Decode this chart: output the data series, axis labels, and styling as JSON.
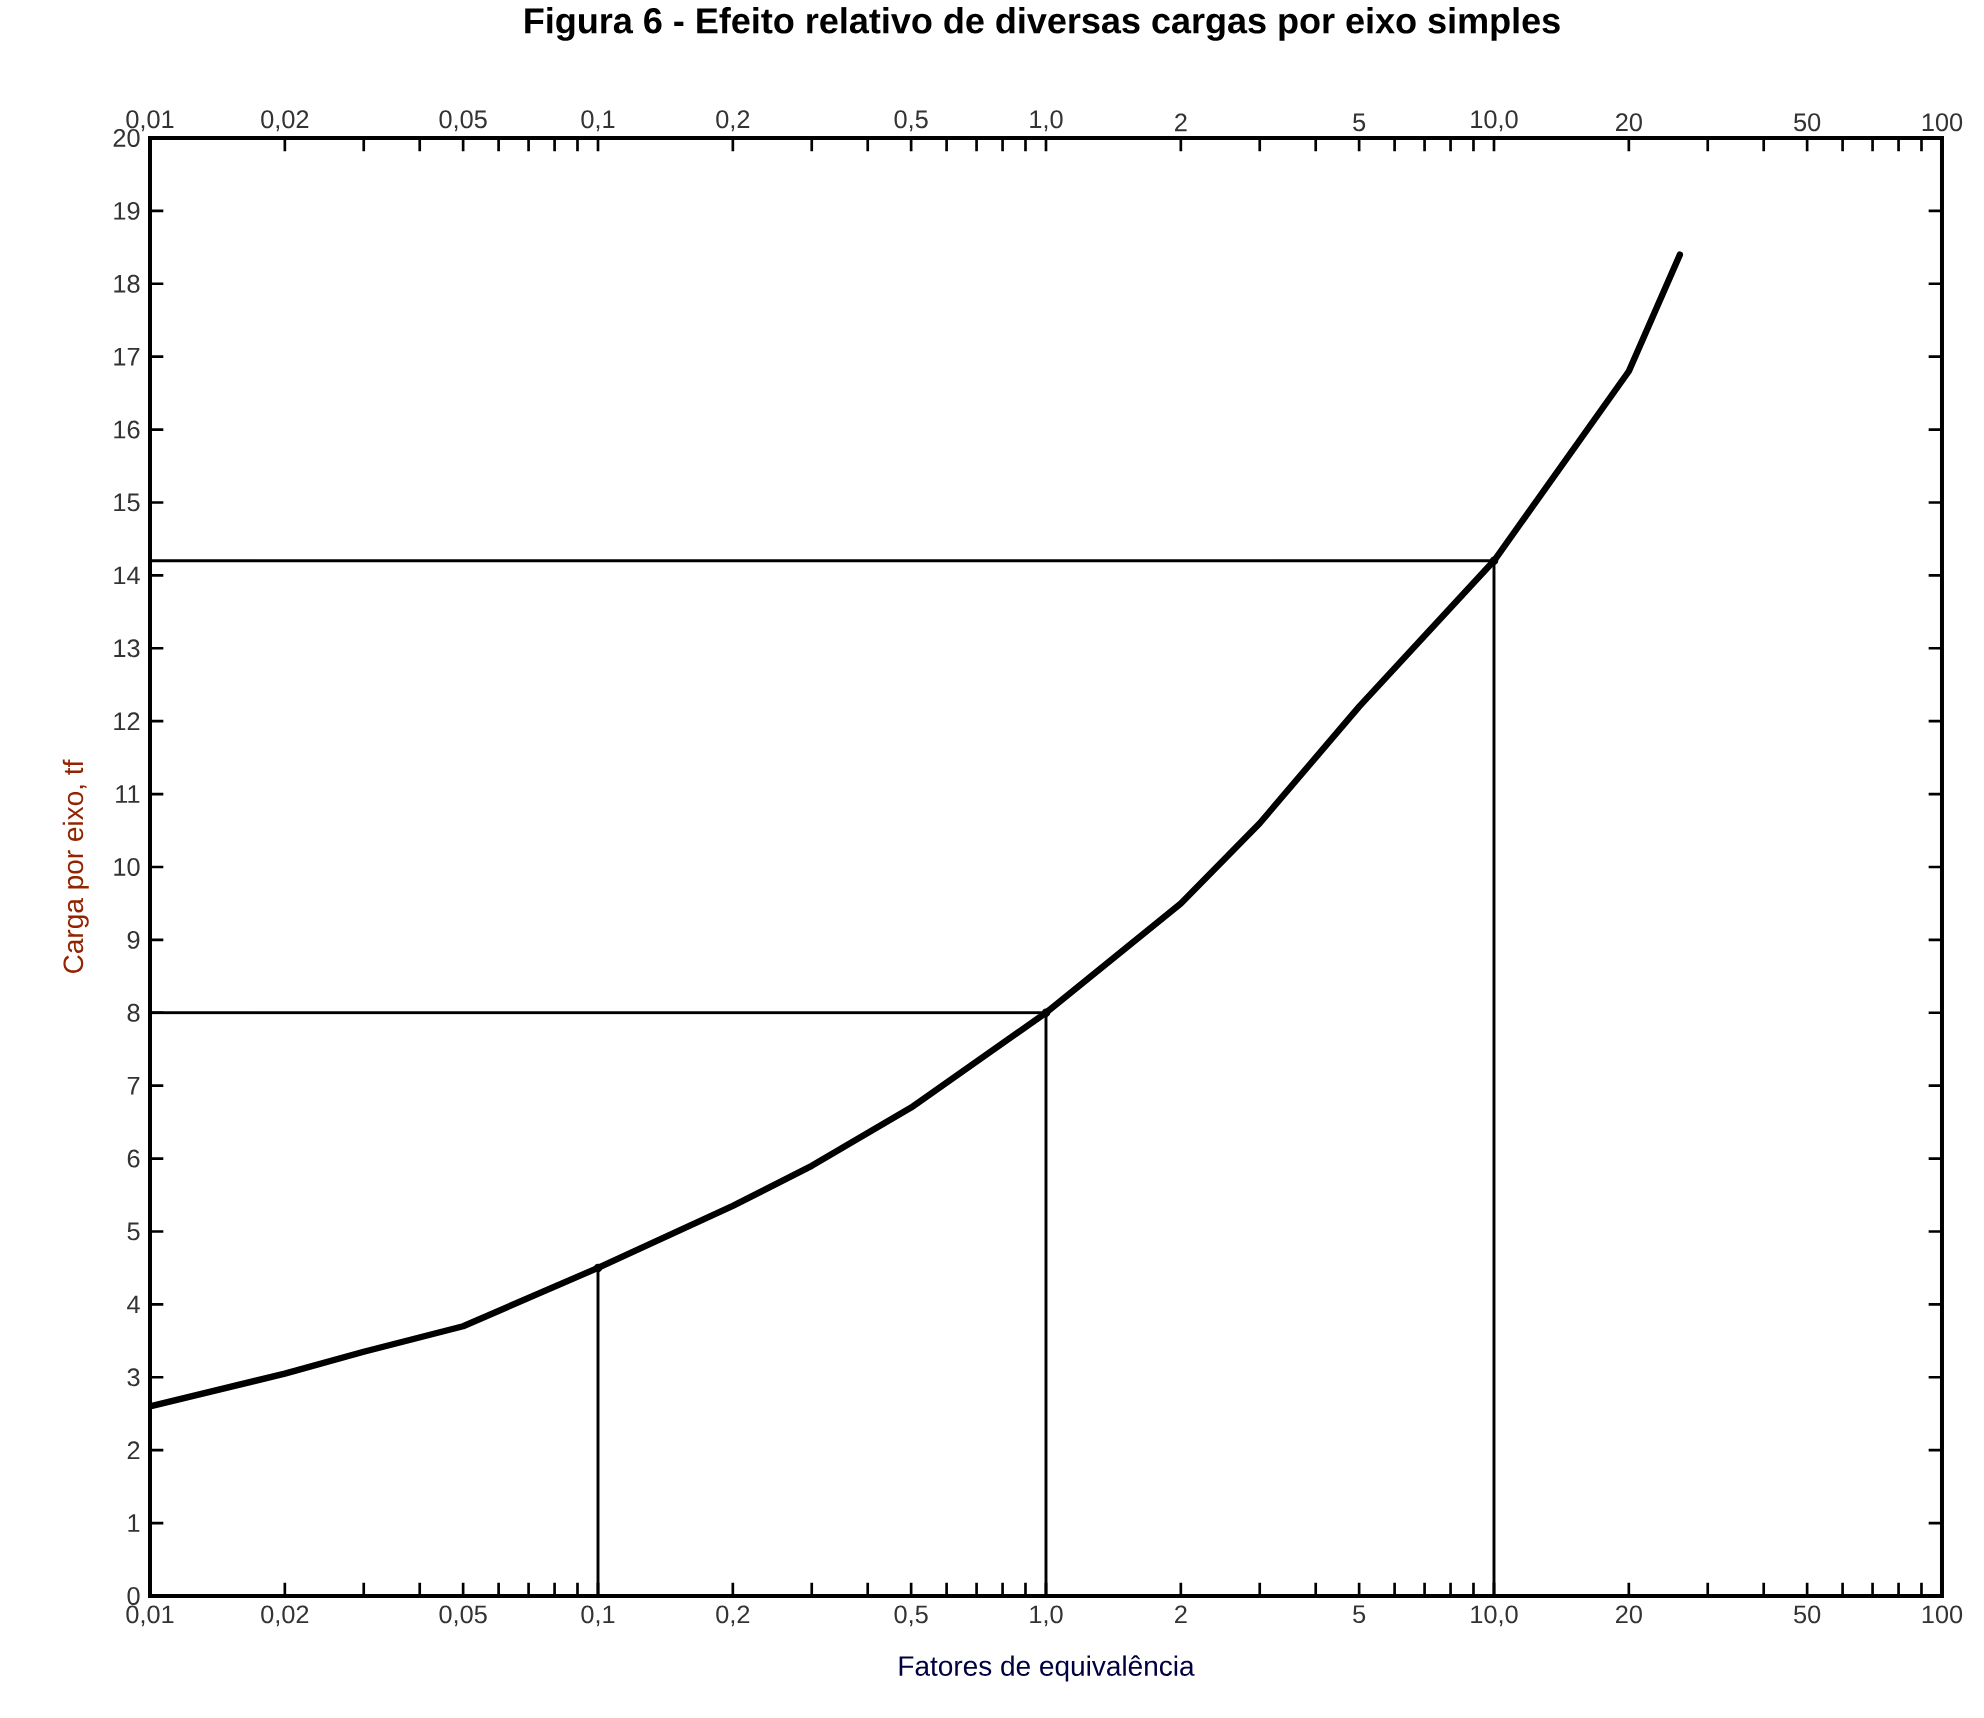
{
  "chart_data": {
    "type": "line",
    "title": "Figura 6 - Efeito relativo de diversas cargas por eixo simples",
    "xlabel": "Fatores de equivalência",
    "ylabel": "Carga por eixo, tf",
    "log": "x",
    "xlim": [
      0.01,
      100
    ],
    "ylim": [
      0,
      20
    ],
    "xticks": [
      {
        "value": 0.01,
        "label": "0,01"
      },
      {
        "value": 0.02,
        "label": "0,02"
      },
      {
        "value": 0.03,
        "label": null
      },
      {
        "value": 0.04,
        "label": null
      },
      {
        "value": 0.05,
        "label": "0,05"
      },
      {
        "value": 0.06,
        "label": null
      },
      {
        "value": 0.07,
        "label": null
      },
      {
        "value": 0.08,
        "label": null
      },
      {
        "value": 0.09,
        "label": null
      },
      {
        "value": 0.1,
        "label": "0,1"
      },
      {
        "value": 0.2,
        "label": "0,2"
      },
      {
        "value": 0.3,
        "label": null
      },
      {
        "value": 0.4,
        "label": null
      },
      {
        "value": 0.5,
        "label": "0,5"
      },
      {
        "value": 0.6,
        "label": null
      },
      {
        "value": 0.7,
        "label": null
      },
      {
        "value": 0.8,
        "label": null
      },
      {
        "value": 0.9,
        "label": null
      },
      {
        "value": 1,
        "label": "1,0"
      },
      {
        "value": 2,
        "label": "2"
      },
      {
        "value": 3,
        "label": null
      },
      {
        "value": 4,
        "label": null
      },
      {
        "value": 5,
        "label": "5"
      },
      {
        "value": 6,
        "label": null
      },
      {
        "value": 7,
        "label": null
      },
      {
        "value": 8,
        "label": null
      },
      {
        "value": 9,
        "label": null
      },
      {
        "value": 10,
        "label": "10,0"
      },
      {
        "value": 20,
        "label": "20"
      },
      {
        "value": 30,
        "label": null
      },
      {
        "value": 40,
        "label": null
      },
      {
        "value": 50,
        "label": "50"
      },
      {
        "value": 60,
        "label": null
      },
      {
        "value": 70,
        "label": null
      },
      {
        "value": 80,
        "label": null
      },
      {
        "value": 90,
        "label": null
      },
      {
        "value": 100,
        "label": "100"
      }
    ],
    "yticks": [
      0,
      1,
      2,
      3,
      4,
      5,
      6,
      7,
      8,
      9,
      10,
      11,
      12,
      13,
      14,
      15,
      16,
      17,
      18,
      19,
      20
    ],
    "series": [
      {
        "color": "#000000",
        "x": [
          0.01,
          0.02,
          0.03,
          0.05,
          0.1,
          0.2,
          0.3,
          0.5,
          1,
          2,
          3,
          5,
          10,
          20,
          26
        ],
        "values": [
          2.6,
          3.05,
          3.35,
          3.7,
          4.5,
          5.35,
          5.9,
          6.7,
          8,
          9.5,
          10.6,
          12.2,
          14.2,
          16.8,
          18.4
        ]
      },
      {
        "type": "lollipop",
        "color": "#000000",
        "x": [
          0.1,
          1,
          10
        ],
        "values": [
          4.5,
          8,
          14.2
        ]
      },
      {
        "color": "#000000",
        "x": [
          0.01,
          1
        ],
        "values": [
          8,
          8
        ]
      },
      {
        "color": "#000000",
        "x": [
          0.01,
          10
        ],
        "values": [
          14.2,
          14.2
        ]
      }
    ]
  }
}
